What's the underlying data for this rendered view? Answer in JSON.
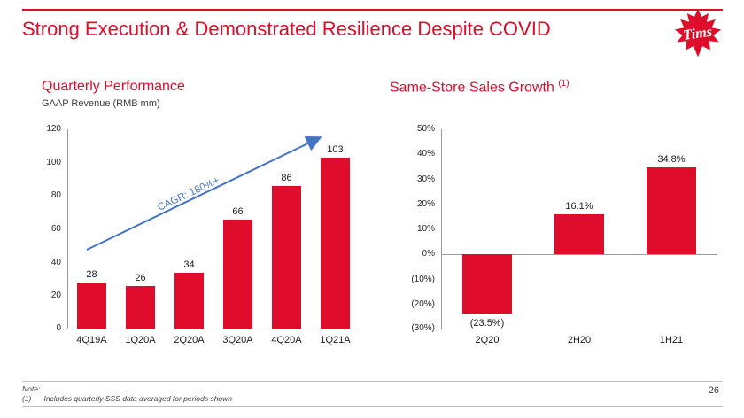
{
  "slide": {
    "title": "Strong Execution & Demonstrated Resilience Despite COVID",
    "logo_text": "Tims",
    "page_number": "26"
  },
  "footnote": {
    "label": "Note:",
    "ref": "(1)",
    "text": "Includes quarterly SSS data averaged for periods shown"
  },
  "colors": {
    "red": "#DF0C2C",
    "arrow_blue": "#4472C4",
    "axis_gray": "#9A9A9A"
  },
  "chart_data": [
    {
      "type": "bar",
      "title": "Quarterly Performance",
      "subtitle": "GAAP Revenue (RMB mm)",
      "categories": [
        "4Q19A",
        "1Q20A",
        "2Q20A",
        "3Q20A",
        "4Q20A",
        "1Q21A"
      ],
      "values": [
        28,
        26,
        34,
        66,
        86,
        103
      ],
      "data_labels": [
        "28",
        "26",
        "34",
        "66",
        "86",
        "103"
      ],
      "ylim": [
        0,
        120
      ],
      "yticks": [
        120,
        100,
        80,
        60,
        40,
        20,
        0
      ],
      "ytick_labels": [
        "120",
        "100",
        "80",
        "60",
        "40",
        "20",
        "0"
      ],
      "annotation": "CAGR: 180%+",
      "grid": false,
      "legend": "none"
    },
    {
      "type": "bar",
      "title": "Same-Store Sales Growth",
      "title_superscript": "(1)",
      "categories": [
        "2Q20",
        "2H20",
        "1H21"
      ],
      "values": [
        -23.5,
        16.1,
        34.8
      ],
      "data_labels": [
        "(23.5%)",
        "16.1%",
        "34.8%"
      ],
      "ylim": [
        -30,
        50
      ],
      "yticks": [
        50,
        40,
        30,
        20,
        10,
        0,
        -10,
        -20,
        -30
      ],
      "ytick_labels": [
        "50%",
        "40%",
        "30%",
        "20%",
        "10%",
        "0%",
        "(10%)",
        "(20%)",
        "(30%)"
      ],
      "grid": false,
      "legend": "none"
    }
  ]
}
